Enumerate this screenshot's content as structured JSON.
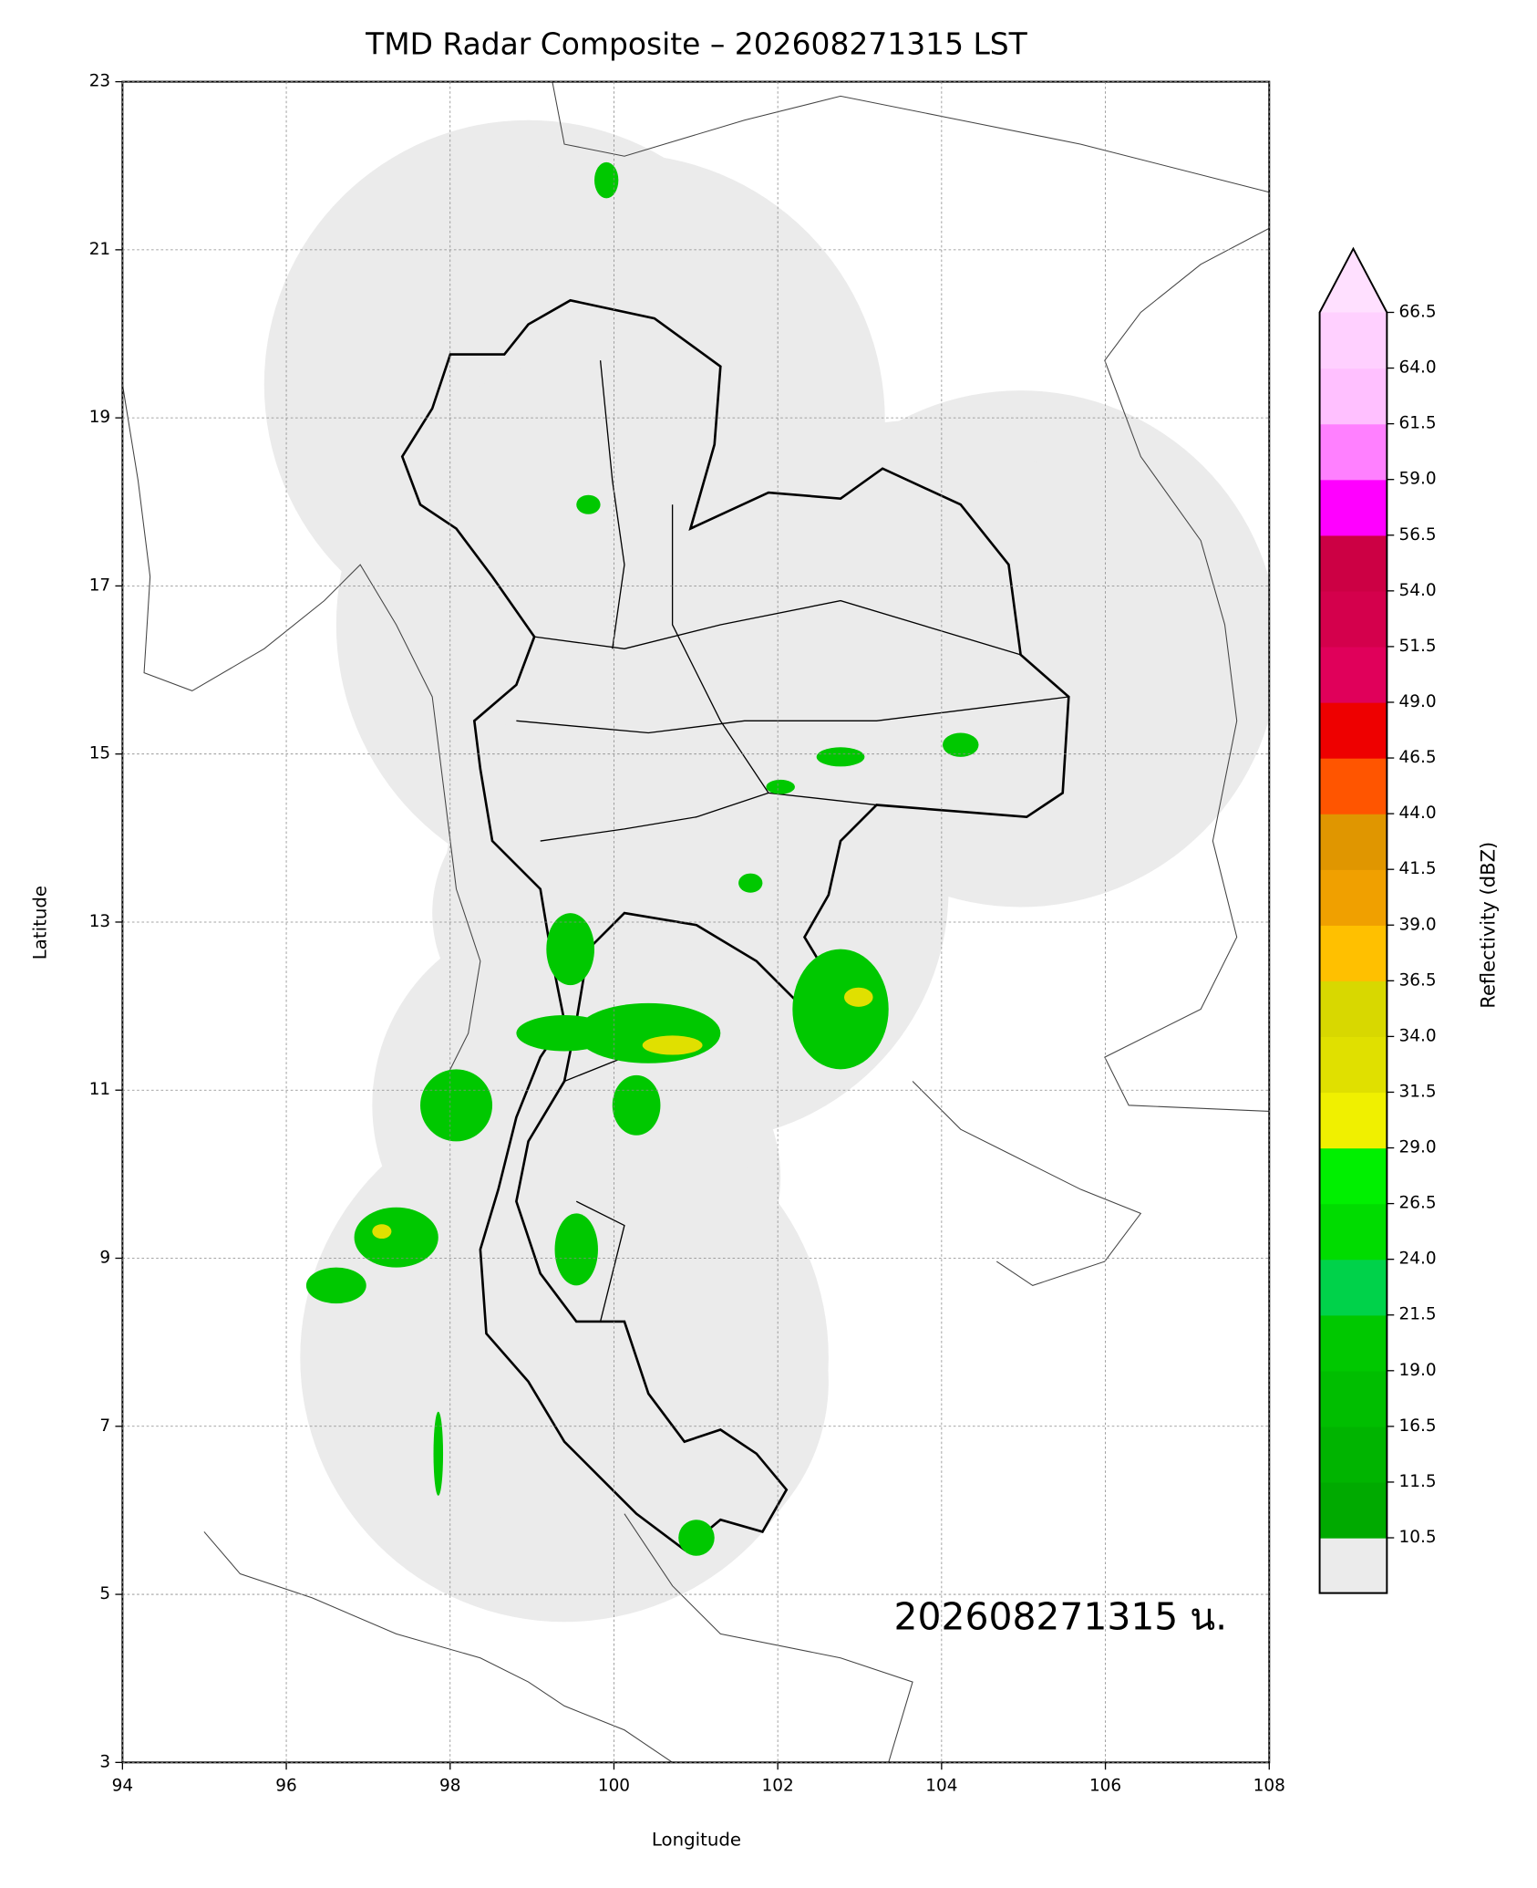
{
  "chart_data": {
    "type": "map",
    "title": "TMD Radar Composite – 202608271315 LST",
    "x_label": "Longitude",
    "y_label": "Latitude",
    "xlim": [
      94,
      108
    ],
    "ylim": [
      3,
      23
    ],
    "xticks": [
      94,
      96,
      98,
      100,
      102,
      104,
      106,
      108
    ],
    "yticks": [
      3,
      5,
      7,
      9,
      11,
      13,
      15,
      17,
      19,
      21,
      23
    ],
    "grid": true,
    "annotation": "202608271315 น.",
    "colorbar": {
      "label": "Reflectivity (dBZ)",
      "ticks": [
        10.5,
        11.5,
        16.5,
        {
          "value": 19,
          "label": "19.0"
        },
        21.5,
        {
          "value": 24,
          "label": "24.0"
        },
        26.5,
        {
          "value": 29,
          "label": "29.0"
        },
        31.5,
        {
          "value": 34,
          "label": "34.0"
        },
        36.5,
        {
          "value": 39,
          "label": "39.0"
        },
        41.5,
        {
          "value": 44,
          "label": "44.0"
        },
        46.5,
        {
          "value": 49,
          "label": "49.0"
        },
        51.5,
        {
          "value": 54,
          "label": "54.0"
        },
        56.5,
        {
          "value": 59,
          "label": "59.0"
        },
        61.5,
        {
          "value": 64,
          "label": "64.0"
        },
        66.5
      ],
      "colors": [
        "#00aa00",
        "#00b400",
        "#00be00",
        "#00c800",
        "#00d24a",
        "#00dc00",
        "#00f000",
        "#f0f000",
        "#e0e000",
        "#d8d800",
        "#ffc000",
        "#f0a000",
        "#e09600",
        "#ff5500",
        "#ee0000",
        "#e0005a",
        "#d4004c",
        "#cc0044",
        "#ff00ff",
        "#ff80ff",
        "#ffc0ff",
        "#ffd0ff"
      ],
      "under_color": "#ebebeb",
      "over_color": "#ffe0ff"
    }
  }
}
